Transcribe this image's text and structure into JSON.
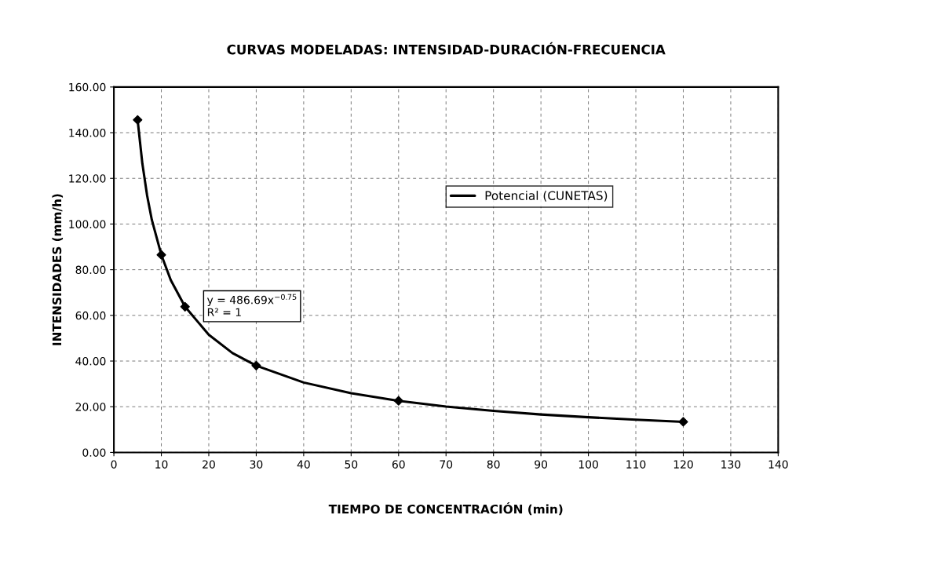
{
  "chart_data": {
    "type": "line",
    "title": "CURVAS MODELADAS: INTENSIDAD-DURACIÓN-FRECUENCIA",
    "xlabel": "TIEMPO DE CONCENTRACIÓN (min)",
    "ylabel": "INTENSIDADES (mm/h)",
    "series": [
      {
        "name": "Potencial (CUNETAS)",
        "color": "#000000",
        "marker": "none",
        "x": [
          5,
          6,
          7,
          8,
          10,
          12,
          15,
          20,
          25,
          30,
          40,
          50,
          60,
          70,
          80,
          90,
          100,
          110,
          120
        ],
        "values": [
          145.6,
          126.5,
          112.5,
          101.8,
          86.5,
          75.4,
          63.8,
          51.5,
          43.5,
          38.0,
          30.6,
          25.9,
          22.6,
          20.1,
          18.2,
          16.6,
          15.4,
          14.3,
          13.4
        ]
      },
      {
        "type": "scatter",
        "color": "#000000",
        "marker": "diamond",
        "x": [
          5,
          10,
          15,
          30,
          60,
          120
        ],
        "values": [
          145.6,
          86.5,
          63.8,
          38.0,
          22.6,
          13.4
        ]
      }
    ],
    "annotations": [
      "y = 486.69x$^{−0.75}$\nR² = 1"
    ],
    "xlim": [
      0,
      140
    ],
    "xticks": [
      0,
      10,
      20,
      30,
      40,
      50,
      60,
      70,
      80,
      90,
      100,
      110,
      120,
      130,
      140
    ],
    "ylim": [
      0,
      160
    ],
    "yticks": [
      {
        "value": 0,
        "label": "0.00"
      },
      {
        "value": 20,
        "label": "20.00"
      },
      {
        "value": 40,
        "label": "40.00"
      },
      {
        "value": 60,
        "label": "60.00"
      },
      {
        "value": 80,
        "label": "80.00"
      },
      {
        "value": 100,
        "label": "100.00"
      },
      {
        "value": 120,
        "label": "120.00"
      },
      {
        "value": 140,
        "label": "140.00"
      },
      {
        "value": 160,
        "label": "160.00"
      }
    ],
    "grid": true,
    "legend": "right",
    "line_style": "solid"
  }
}
